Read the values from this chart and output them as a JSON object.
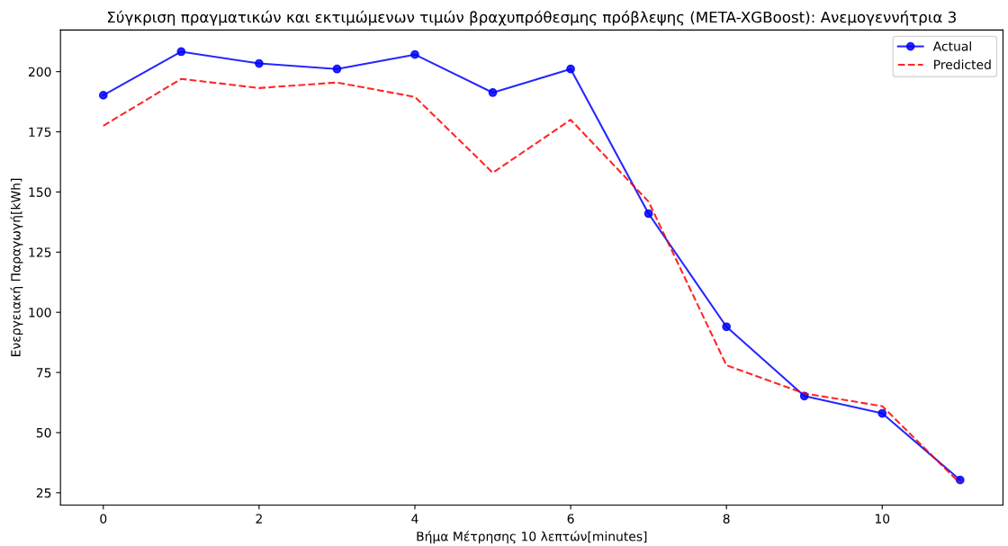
{
  "chart_data": {
    "type": "line",
    "title": "Σύγκριση πραγματικών και εκτιμώμενων τιμών βραχυπρόθεσμης πρόβλεψης (META-XGBoost): Ανεμογεννήτρια 3",
    "xlabel": "Βήμα Μέτρησης 10 λεπτών[minutes]",
    "ylabel": "Ενεργειακή Παραγωγή[kWh]",
    "x": [
      0,
      1,
      2,
      3,
      4,
      5,
      6,
      7,
      8,
      9,
      10,
      11
    ],
    "series": [
      {
        "name": "Actual",
        "color": "#0000ff",
        "marker": "circle",
        "line_style": "solid",
        "values": [
          190.2,
          208.3,
          203.4,
          201.1,
          207.1,
          191.3,
          201.1,
          141,
          94,
          65.2,
          58,
          30.3
        ]
      },
      {
        "name": "Predicted",
        "color": "#ff0000",
        "marker": "none",
        "line_style": "dashed",
        "values": [
          177.5,
          197,
          193.2,
          195.5,
          189.5,
          158,
          180,
          146,
          78,
          66.3,
          61,
          28.9
        ]
      }
    ],
    "xlim": [
      -0.55,
      11.55
    ],
    "xticks": [
      0,
      2,
      4,
      6,
      8,
      10
    ],
    "ylim": [
      19.9,
      217.3
    ],
    "yticks": [
      25,
      50,
      75,
      100,
      125,
      150,
      175,
      200
    ],
    "legend": "top right",
    "grid": false
  }
}
